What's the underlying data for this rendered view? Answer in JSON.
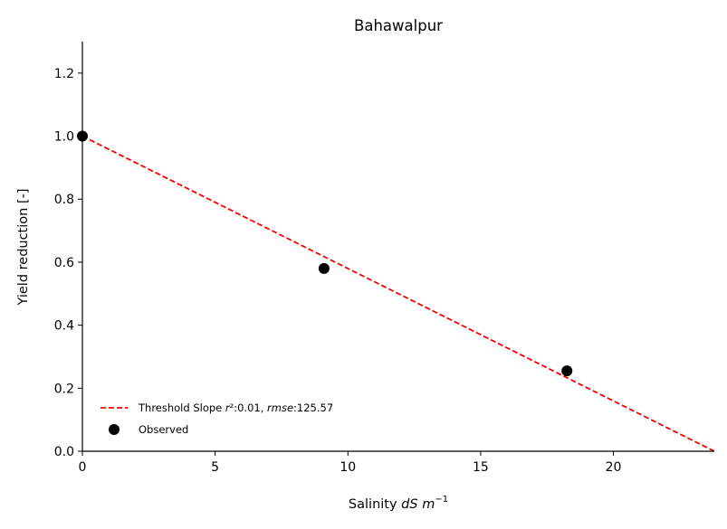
{
  "chart_data": {
    "type": "scatter",
    "title": "Bahawalpur",
    "xlabel": {
      "prefix": "Salinity ",
      "italic": "dS m",
      "superscript": "−1"
    },
    "ylabel": "Yield reduction [-]",
    "xlim": [
      0,
      23.8
    ],
    "ylim": [
      0,
      1.3
    ],
    "xticks": [
      0,
      5,
      10,
      15,
      20
    ],
    "yticks": [
      0.0,
      0.2,
      0.4,
      0.6,
      0.8,
      1.0,
      1.2
    ],
    "series": [
      {
        "name": "Threshold Slope",
        "kind": "line",
        "style": "dashed",
        "color": "#ff0000",
        "x": [
          0,
          23.8
        ],
        "y": [
          1.0,
          0.0
        ]
      },
      {
        "name": "Observed",
        "kind": "scatter",
        "color": "#000000",
        "x": [
          0,
          9.1,
          18.25
        ],
        "y": [
          1.0,
          0.58,
          0.255
        ]
      }
    ],
    "legend": {
      "position": "bottom-left",
      "entries": [
        {
          "series": "Threshold Slope",
          "label_parts": [
            {
              "text": "Threshold Slope ",
              "italic": false
            },
            {
              "text": "r",
              "italic": true
            },
            {
              "text": "²:0.01, ",
              "italic": false
            },
            {
              "text": "rmse",
              "italic": true
            },
            {
              "text": ":125.57",
              "italic": false
            }
          ]
        },
        {
          "series": "Observed",
          "label_parts": [
            {
              "text": "Observed",
              "italic": false
            }
          ]
        }
      ]
    }
  }
}
